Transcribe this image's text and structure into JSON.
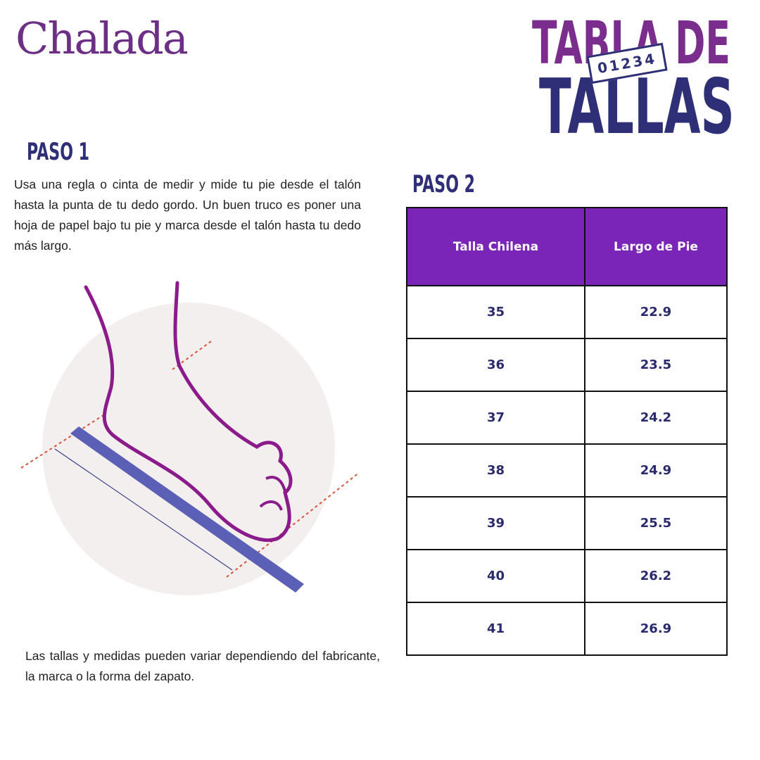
{
  "logo": "Chalada",
  "title": {
    "line1": "TABLA DE",
    "line2": "TALLAS",
    "ruler_digits": "01234"
  },
  "step1": {
    "heading": "PASO 1",
    "text": "Usa una regla o cinta de medir y mide tu pie desde el talón hasta la punta de tu dedo gordo. Un buen truco es poner una hoja de papel bajo tu pie y marca desde el talón hasta tu dedo más largo."
  },
  "step2": {
    "heading": "PASO 2",
    "table": {
      "header": [
        "Talla Chilena",
        "Largo de Pie"
      ],
      "rows": [
        [
          35,
          22.9
        ],
        [
          36,
          23.5
        ],
        [
          37,
          24.2
        ],
        [
          38,
          24.9
        ],
        [
          39,
          25.5
        ],
        [
          40,
          26.2
        ],
        [
          41,
          26.9
        ]
      ]
    }
  },
  "note": "Las tallas y medidas pueden variar dependiendo del fabricante, la marca o la forma del zapato."
}
